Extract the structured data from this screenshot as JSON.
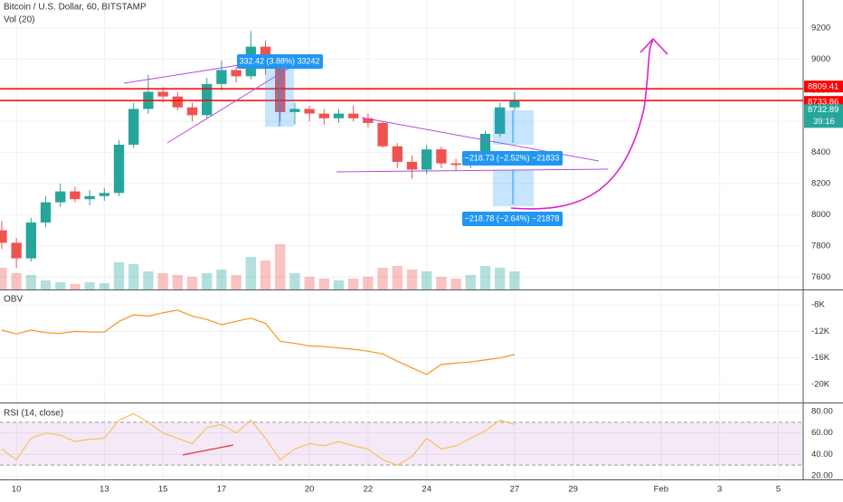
{
  "header": {
    "title": "Bitcoin / U.S. Dollar, 60, BITSTAMP",
    "volume_label": "Vol (20)",
    "obv_label": "OBV",
    "rsi_label": "RSI (14, close)"
  },
  "chart_data": [
    {
      "type": "candlestick",
      "x": [
        9.5,
        10,
        10.5,
        11,
        11.5,
        12,
        12.5,
        13,
        13.5,
        14,
        14.5,
        15,
        15.5,
        16,
        16.5,
        17,
        17.5,
        18,
        18.5,
        19,
        19.5,
        20,
        20.5,
        21,
        21.5,
        22,
        22.5,
        23,
        23.5,
        24,
        24.5,
        25,
        25.5,
        26,
        26.5,
        27
      ],
      "open": [
        7900,
        7820,
        7720,
        7950,
        8080,
        8150,
        8100,
        8120,
        8140,
        8450,
        8680,
        8790,
        8760,
        8690,
        8640,
        8840,
        8930,
        8890,
        9080,
        8950,
        8660,
        8680,
        8650,
        8620,
        8650,
        8620,
        8590,
        8440,
        8340,
        8290,
        8420,
        8330,
        8320,
        8380,
        8520,
        8690
      ],
      "high": [
        7960,
        7850,
        7980,
        8120,
        8200,
        8180,
        8160,
        8170,
        8480,
        8720,
        8900,
        8820,
        8790,
        8720,
        8880,
        8990,
        8950,
        9180,
        9120,
        8970,
        8720,
        8700,
        8680,
        8680,
        8700,
        8650,
        8600,
        8460,
        8380,
        8450,
        8440,
        8360,
        8400,
        8540,
        8720,
        8790
      ],
      "low": [
        7780,
        7660,
        7700,
        7920,
        8050,
        8080,
        8060,
        8090,
        8120,
        8430,
        8650,
        8720,
        8670,
        8600,
        8620,
        8800,
        8850,
        8870,
        8900,
        8600,
        8580,
        8600,
        8580,
        8590,
        8600,
        8560,
        8430,
        8300,
        8230,
        8260,
        8300,
        8280,
        8300,
        8360,
        8500,
        8670
      ],
      "close": [
        7820,
        7720,
        7950,
        8080,
        8150,
        8100,
        8120,
        8140,
        8450,
        8680,
        8790,
        8760,
        8690,
        8640,
        8840,
        8930,
        8890,
        9080,
        8950,
        8660,
        8680,
        8650,
        8620,
        8650,
        8620,
        8590,
        8440,
        8340,
        8290,
        8420,
        8330,
        8320,
        8380,
        8520,
        8690,
        8732.89
      ],
      "volume": [
        1200,
        900,
        800,
        500,
        400,
        300,
        400,
        350,
        1500,
        1400,
        1000,
        900,
        800,
        700,
        900,
        1100,
        800,
        1800,
        1600,
        2500,
        900,
        700,
        600,
        500,
        600,
        700,
        1200,
        1300,
        1100,
        1000,
        700,
        600,
        800,
        1300,
        1200,
        1000
      ],
      "volume_lim": [
        0,
        4000
      ],
      "up_color": "#26a69a",
      "down_color": "#ef5350",
      "xlim": [
        9.44,
        36.85
      ],
      "xticks": [
        10,
        13,
        15,
        17,
        20,
        22,
        24,
        27,
        29,
        {
          "value": 32,
          "label": "Feb"
        },
        {
          "value": 34,
          "label": "3"
        },
        {
          "value": 36,
          "label": "5"
        }
      ],
      "ylim": [
        7520,
        9380
      ],
      "yticks": [
        7600,
        7800,
        8000,
        8200,
        8400,
        8600,
        8800,
        9000,
        9200
      ],
      "horizontal_lines": [
        8809.41,
        8733.86
      ],
      "line_color": "#ff0000",
      "last_price": 8732.89,
      "countdown": "39:16",
      "annotations": [
        "332.42 (3.88%) 33242",
        "−218.73 (−2.52%) −21833",
        "−218.78 (−2.64%) −21878"
      ]
    },
    {
      "type": "line",
      "color": "#f7941d",
      "values": [
        -11800,
        -12400,
        -11800,
        -12200,
        -12300,
        -12000,
        -12100,
        -12100,
        -10500,
        -9500,
        -9700,
        -9200,
        -8800,
        -9700,
        -10200,
        -11000,
        -10500,
        -10000,
        -10800,
        -13500,
        -13800,
        -14200,
        -14300,
        -14500,
        -14700,
        -15000,
        -15400,
        -16500,
        -17500,
        -18500,
        -17000,
        -16800,
        -16600,
        -16300,
        -16000,
        -15500
      ],
      "ylim": [
        -22730,
        -5950
      ],
      "yticks": [
        {
          "value": -8000,
          "label": "-8K"
        },
        {
          "value": -12000,
          "label": "-12K"
        },
        {
          "value": -16000,
          "label": "-16K"
        },
        {
          "value": -20000,
          "label": "-20K"
        }
      ]
    },
    {
      "type": "line",
      "color": "#f7c15c",
      "values": [
        45,
        35,
        55,
        60,
        58,
        52,
        54,
        55,
        72,
        78,
        70,
        60,
        55,
        50,
        65,
        68,
        60,
        72,
        55,
        35,
        45,
        50,
        48,
        52,
        48,
        45,
        35,
        30,
        38,
        55,
        45,
        48,
        55,
        62,
        72,
        68
      ],
      "ylim": [
        16.6,
        86.8
      ],
      "yticks": [
        {
          "value": 80,
          "label": "80.00"
        },
        {
          "value": 60,
          "label": "60.00"
        },
        {
          "value": 40,
          "label": "40.00"
        },
        {
          "value": 20,
          "label": "20.00"
        }
      ],
      "band": [
        30,
        70
      ]
    }
  ]
}
